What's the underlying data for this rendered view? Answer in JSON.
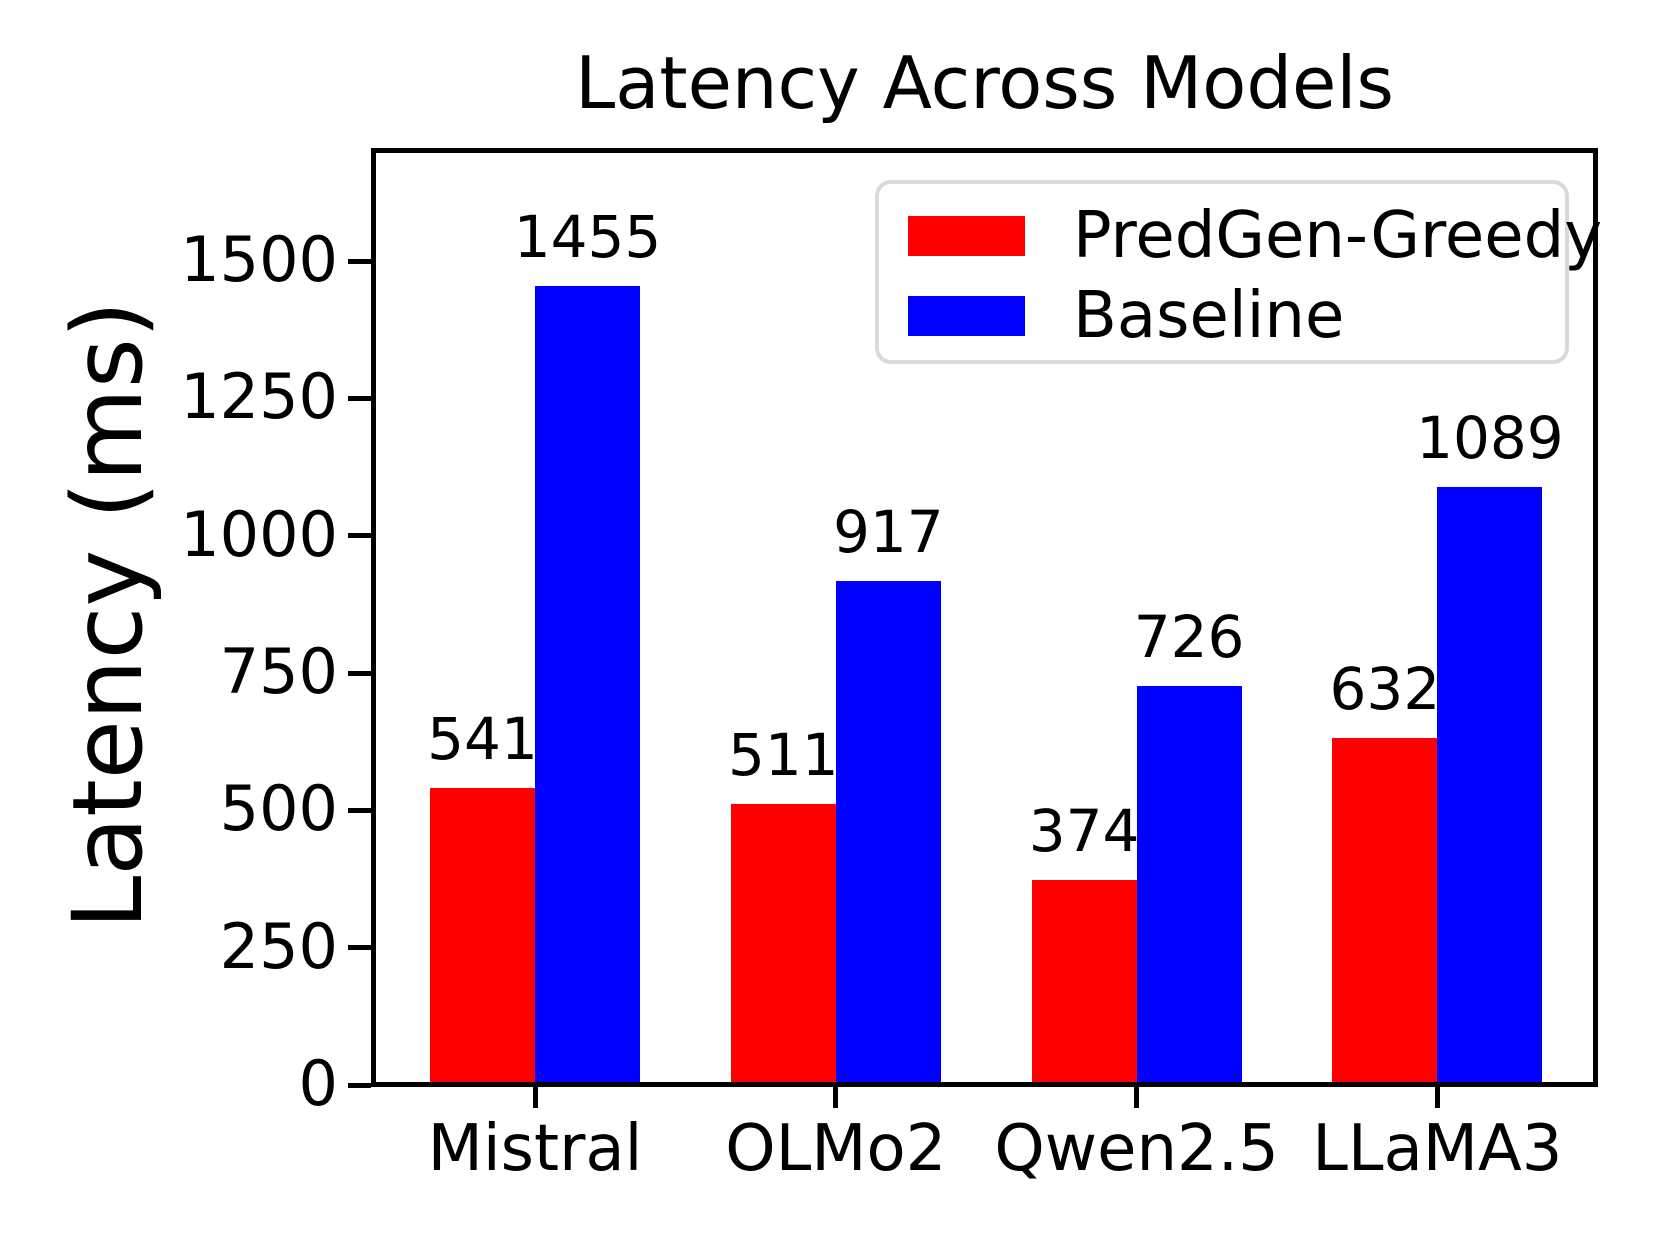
{
  "chart_data": {
    "type": "bar",
    "title": "Latency Across Models",
    "xlabel": "",
    "ylabel": "Latency (ms)",
    "categories": [
      "Mistral",
      "OLMo2",
      "Qwen2.5",
      "LLaMA3"
    ],
    "series": [
      {
        "name": "PredGen-Greedy",
        "color": "#ff0000",
        "values": [
          541,
          511,
          374,
          632
        ]
      },
      {
        "name": "Baseline",
        "color": "#0000ff",
        "values": [
          1455,
          917,
          726,
          1089
        ]
      }
    ],
    "y_ticks": [
      0,
      250,
      500,
      750,
      1000,
      1250,
      1500
    ],
    "ylim": [
      0,
      1702
    ],
    "bar_value_labels": true,
    "legend_position": "upper right",
    "grid": false,
    "colors": {
      "axis": "#000000",
      "text": "#000000",
      "background": "#ffffff",
      "legend_border": "#d9d9d9"
    }
  }
}
